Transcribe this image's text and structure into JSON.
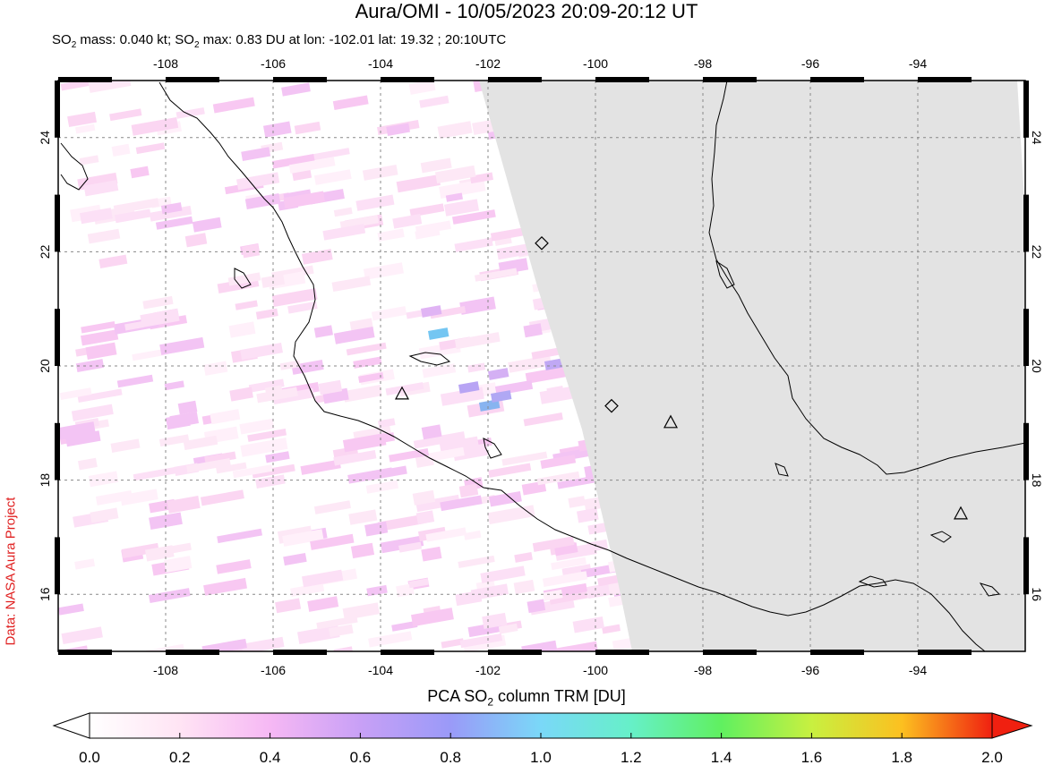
{
  "header": {
    "title": "Aura/OMI - 10/05/2023 20:09-20:12 UT",
    "mass_label": "SO",
    "mass_text": " mass: 0.040 kt; SO",
    "max_text": " max: 0.83 DU at lon: -102.01 lat: 19.32 ; 20:10UTC",
    "sub2": "2"
  },
  "credit": "Data: NASA Aura Project",
  "map": {
    "lon_ticks": [
      "-108",
      "-106",
      "-104",
      "-102",
      "-100",
      "-98",
      "-96",
      "-94"
    ],
    "lat_ticks": [
      "24",
      "22",
      "20",
      "18",
      "16"
    ],
    "lon_range": [
      -110,
      -92
    ],
    "lat_range": [
      15,
      25
    ],
    "volcano_triangles": [
      {
        "lon": -103.6,
        "lat": 19.5
      },
      {
        "lon": -98.6,
        "lat": 19.0
      },
      {
        "lon": -93.2,
        "lat": 17.4
      }
    ],
    "volcano_diamonds": [
      {
        "lon": -101.0,
        "lat": 22.15
      },
      {
        "lon": -99.7,
        "lat": 19.3
      }
    ],
    "no_data_color": "#e3e3e3"
  },
  "colorbar": {
    "title_pre": "PCA SO",
    "title_sub": "2",
    "title_post": " column TRM [DU]",
    "ticks": [
      "0.0",
      "0.2",
      "0.4",
      "0.6",
      "0.8",
      "1.0",
      "1.2",
      "1.4",
      "1.6",
      "1.8",
      "2.0"
    ],
    "range": [
      0.0,
      2.0
    ]
  }
}
